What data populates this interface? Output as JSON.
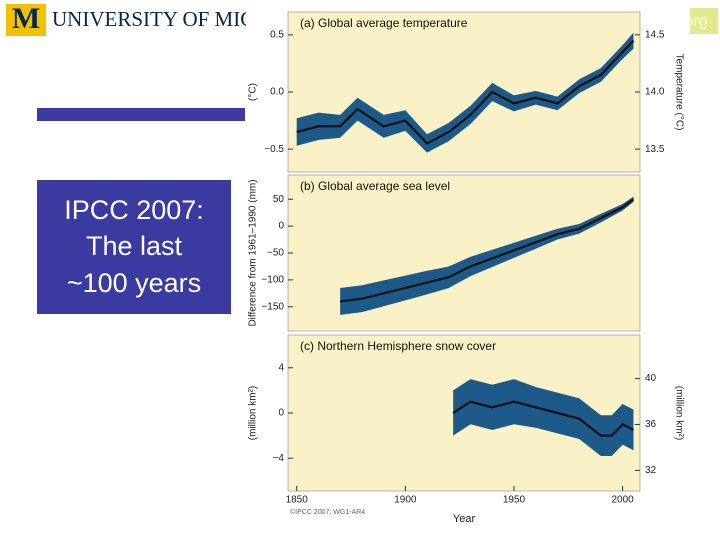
{
  "slide": {
    "logo": "UNIVERSITY OF MICH",
    "corner": "org",
    "caption": [
      "IPCC 2007:",
      "The last",
      "~100 years"
    ]
  },
  "chart_data": [
    {
      "type": "line",
      "title": "(a) Global average temperature",
      "x": [
        1850,
        1860,
        1870,
        1878,
        1890,
        1900,
        1910,
        1920,
        1930,
        1940,
        1950,
        1960,
        1970,
        1980,
        1990,
        2000,
        2005
      ],
      "series": [
        {
          "color": "#111111",
          "band_color": "#1d5a8a",
          "values": [
            -0.35,
            -0.3,
            -0.3,
            -0.15,
            -0.3,
            -0.25,
            -0.45,
            -0.35,
            -0.2,
            0.0,
            -0.1,
            -0.05,
            -0.1,
            0.05,
            0.15,
            0.35,
            0.45
          ],
          "errors": [
            0.12,
            0.12,
            0.1,
            0.1,
            0.1,
            0.09,
            0.08,
            0.08,
            0.08,
            0.08,
            0.07,
            0.06,
            0.06,
            0.06,
            0.06,
            0.06,
            0.07
          ]
        }
      ],
      "xlim": [
        1846,
        2008
      ],
      "ylim": [
        -0.7,
        0.7
      ],
      "yticks": [
        0.5,
        {
          "value": 0,
          "label": "0.0"
        },
        {
          "value": -0.5,
          "label": "−0.5"
        }
      ],
      "ylabel": "(°C)",
      "y2lim": [
        13.3,
        14.7
      ],
      "y2ticks": [
        14.5,
        {
          "value": 14,
          "label": "14.0"
        },
        13.5
      ],
      "y2label": "Temperature (°C)"
    },
    {
      "type": "line",
      "title": "(b) Global average sea level",
      "x": [
        1870,
        1880,
        1890,
        1900,
        1910,
        1920,
        1930,
        1940,
        1950,
        1960,
        1970,
        1980,
        1990,
        2000,
        2005
      ],
      "series": [
        {
          "color": "#111111",
          "band_color": "#1d5a8a",
          "values": [
            -140,
            -135,
            -125,
            -115,
            -105,
            -95,
            -75,
            -60,
            -45,
            -30,
            -15,
            -5,
            15,
            35,
            50
          ],
          "errors": [
            25,
            25,
            24,
            23,
            22,
            20,
            18,
            16,
            14,
            12,
            10,
            9,
            8,
            6,
            5
          ]
        }
      ],
      "xlim": [
        1846,
        2008
      ],
      "ylim": [
        -195,
        95
      ],
      "yticks": [
        50,
        0,
        {
          "value": -50,
          "label": "−50"
        },
        {
          "value": -100,
          "label": "−100"
        },
        {
          "value": -150,
          "label": "−150"
        }
      ],
      "ylabel": "Difference from 1961–1990 (mm)"
    },
    {
      "type": "line",
      "title": "(c) Northern Hemisphere snow cover",
      "x": [
        1922,
        1930,
        1940,
        1950,
        1960,
        1970,
        1980,
        1990,
        1995,
        2000,
        2005
      ],
      "series": [
        {
          "color": "#111111",
          "band_color": "#1d5a8a",
          "values": [
            0,
            1,
            0.5,
            1,
            0.5,
            0,
            -0.5,
            -2,
            -2,
            -1,
            -1.5
          ],
          "errors": [
            2,
            2,
            2,
            2,
            1.8,
            1.8,
            1.8,
            1.8,
            1.8,
            1.8,
            1.8
          ]
        }
      ],
      "xlim": [
        1846,
        2008
      ],
      "ylim": [
        -6.9,
        6.9
      ],
      "yticks": [
        4,
        0,
        {
          "value": -4,
          "label": "−4"
        }
      ],
      "ylabel": "(million km²)",
      "y2lim": [
        30.2,
        43.8
      ],
      "y2ticks": [
        40,
        36,
        32
      ],
      "y2label": "(million km²)",
      "xticks": [
        1850,
        1900,
        1950,
        2000
      ],
      "xlabel": "Year",
      "source": "©IPCC 2007: WG1-AR4"
    }
  ]
}
